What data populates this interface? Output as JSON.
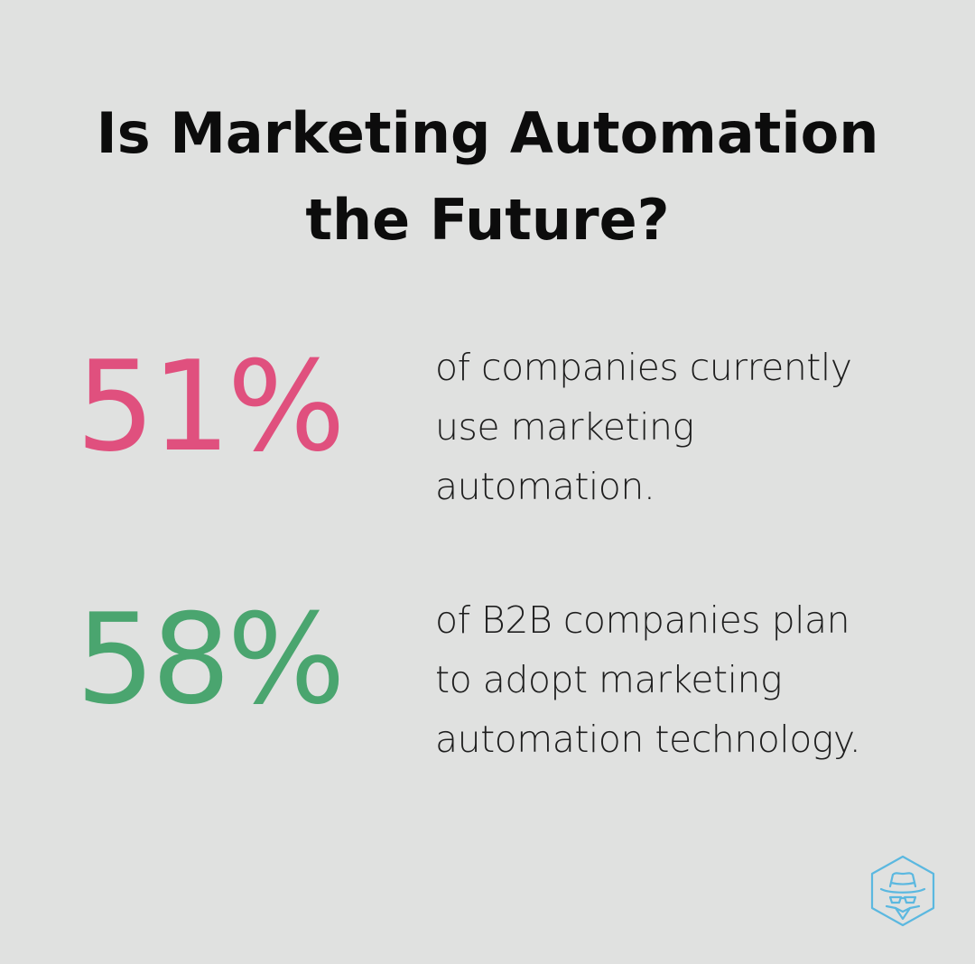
{
  "title": {
    "line1": "Is Marketing Automation",
    "line2": "the Future?"
  },
  "stats": [
    {
      "value": "51%",
      "color": "#e0507e",
      "description_lines": [
        "of companies currently",
        "use marketing",
        "automation."
      ]
    },
    {
      "value": "58%",
      "color": "#4aa56f",
      "description_lines": [
        "of B2B companies plan",
        "to adopt marketing",
        "automation technology."
      ]
    }
  ],
  "logo": {
    "icon": "spy-hat-hexagon-icon",
    "color": "#5bb8e0"
  },
  "colors": {
    "background": "#e0e1e0",
    "title": "#0c0c0c",
    "text": "#1e1e1e"
  }
}
